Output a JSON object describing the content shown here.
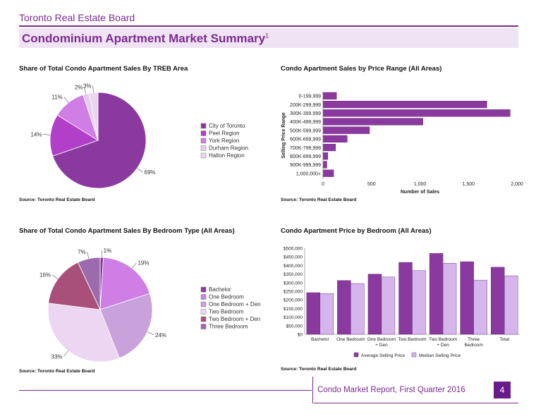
{
  "header": {
    "org": "Toronto Real Estate Board",
    "title": "Condominium Apartment Market Summary",
    "footnote": "1"
  },
  "footer": {
    "report": "Condo Market Report, First Quarter 2016",
    "page": "4"
  },
  "colors": {
    "purple_dark": "#7b2c8e",
    "bar_dark": "#8a3a9e",
    "bar_light": "#d4b6ec"
  },
  "chart_data": [
    {
      "type": "pie",
      "title": "Share of Total Condo Apartment Sales By TREB Area",
      "source": "Source: Toronto Real Estate Board",
      "categories": [
        "City of Toronto",
        "Peel Region",
        "York Region",
        "Durham Region",
        "Halton Region"
      ],
      "values": [
        69,
        14,
        11,
        2,
        3
      ],
      "value_labels": [
        "69%",
        "14%",
        "11%",
        "2%",
        "3%"
      ],
      "colors": [
        "#8a3a9e",
        "#b23fc7",
        "#cf7ee6",
        "#e6cbf0",
        "#ead7ee"
      ]
    },
    {
      "type": "bar",
      "orientation": "horizontal",
      "title": "Condo Apartment Sales by Price Range (All Areas)",
      "source": "Source: Toronto Real Estate Board",
      "categories": [
        "0-199,999",
        "200K-299,999",
        "300K-399,999",
        "400K-499,999",
        "500K-599,999",
        "600K-699,999",
        "700K-799,999",
        "800K-899,999",
        "900K-999,999",
        "1,000,000+"
      ],
      "values": [
        140,
        1690,
        1930,
        1030,
        480,
        250,
        130,
        50,
        40,
        110
      ],
      "xlabel": "Number of Sales",
      "ylabel": "Selling Price Range",
      "xlim": [
        0,
        2000
      ],
      "xticks": [
        0,
        500,
        1000,
        1500,
        2000
      ],
      "xtick_labels": [
        "0",
        "500",
        "1,000",
        "1,500",
        "2,000"
      ]
    },
    {
      "type": "pie",
      "title": "Share of Total Condo Apartment Sales By Bedroom Type (All Areas)",
      "source": "Source: Toronto Real Estate Board",
      "categories": [
        "Bachelor",
        "One Bedroom",
        "One Bedroom + Den",
        "Two Bedroom",
        "Two Bedroom + Den",
        "Three Bedroom"
      ],
      "values": [
        1,
        19,
        24,
        33,
        16,
        7
      ],
      "value_labels": [
        "1%",
        "19%",
        "24%",
        "33%",
        "16%",
        "7%"
      ],
      "colors": [
        "#8a3a9e",
        "#cf7ee6",
        "#c9a2db",
        "#ecd6f2",
        "#a8507a",
        "#9c6bad"
      ]
    },
    {
      "type": "bar",
      "title": "Condo Apartment Price by Bedroom (All Areas)",
      "source": "Source: Toronto Real Estate Board",
      "categories": [
        "Bachelor",
        "One Bedroom",
        "One Bedroom + Den",
        "Two Bedroom",
        "Two Bedroom + Den",
        "Three Bedroom",
        "Total"
      ],
      "category_lines": [
        [
          "Bachelor"
        ],
        [
          "One Bedroom"
        ],
        [
          "One Bedroom",
          "+ Den"
        ],
        [
          "Two Bedroom"
        ],
        [
          "Two Bedroom",
          "+ Den"
        ],
        [
          "Three",
          "Bedroom"
        ],
        [
          "Total"
        ]
      ],
      "series": [
        {
          "name": "Average Selling Price",
          "values": [
            242000,
            313000,
            350000,
            418000,
            470000,
            422000,
            390000
          ]
        },
        {
          "name": "Median Selling Price",
          "values": [
            237000,
            295000,
            333000,
            370000,
            413000,
            315000,
            340000
          ]
        }
      ],
      "ylim": [
        0,
        500000
      ],
      "yticks": [
        0,
        50000,
        100000,
        150000,
        200000,
        250000,
        300000,
        350000,
        400000,
        450000,
        500000
      ],
      "ytick_labels": [
        "$0",
        "$50,000",
        "$100,000",
        "$150,000",
        "$200,000",
        "$250,000",
        "$300,000",
        "$350,000",
        "$400,000",
        "$450,000",
        "$500,000"
      ]
    }
  ]
}
